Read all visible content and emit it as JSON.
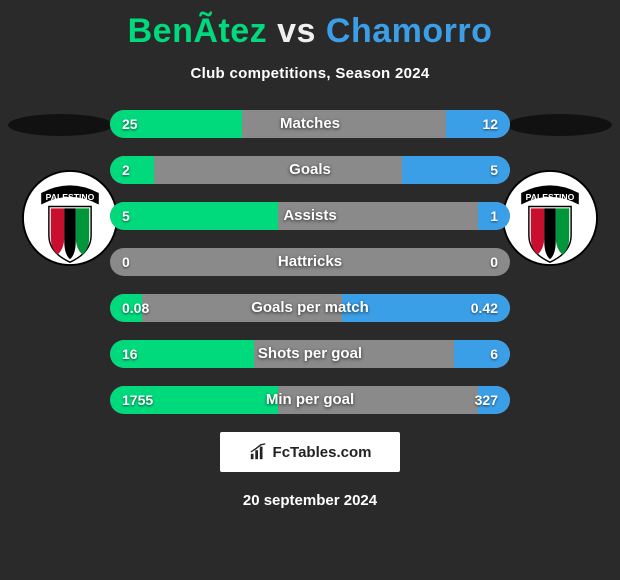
{
  "title": {
    "player1": "BenÃ­tez",
    "vs": "vs",
    "player2": "Chamorro"
  },
  "subtitle": "Club competitions, Season 2024",
  "colors": {
    "player1": "#00d97c",
    "player2": "#3b9fe8",
    "bar_bg": "#8a8a8a",
    "page_bg": "#2a2a2a",
    "logo_bg": "#ffffff",
    "logo_text": "#222222"
  },
  "club_badge": {
    "name": "PALESTINO",
    "stripe_colors": [
      "#c8102e",
      "#000000",
      "#009639"
    ],
    "text_color": "#ffffff",
    "text_bg": "#000000"
  },
  "stats": [
    {
      "label": "Matches",
      "left_value": "25",
      "right_value": "12",
      "left_pct": 33,
      "right_pct": 16
    },
    {
      "label": "Goals",
      "left_value": "2",
      "right_value": "5",
      "left_pct": 11,
      "right_pct": 27
    },
    {
      "label": "Assists",
      "left_value": "5",
      "right_value": "1",
      "left_pct": 42,
      "right_pct": 8
    },
    {
      "label": "Hattricks",
      "left_value": "0",
      "right_value": "0",
      "left_pct": 0,
      "right_pct": 0
    },
    {
      "label": "Goals per match",
      "left_value": "0.08",
      "right_value": "0.42",
      "left_pct": 8,
      "right_pct": 42
    },
    {
      "label": "Shots per goal",
      "left_value": "16",
      "right_value": "6",
      "left_pct": 36,
      "right_pct": 14
    },
    {
      "label": "Min per goal",
      "left_value": "1755",
      "right_value": "327",
      "left_pct": 42,
      "right_pct": 8
    }
  ],
  "logo": {
    "text": "FcTables.com"
  },
  "date": "20 september 2024"
}
